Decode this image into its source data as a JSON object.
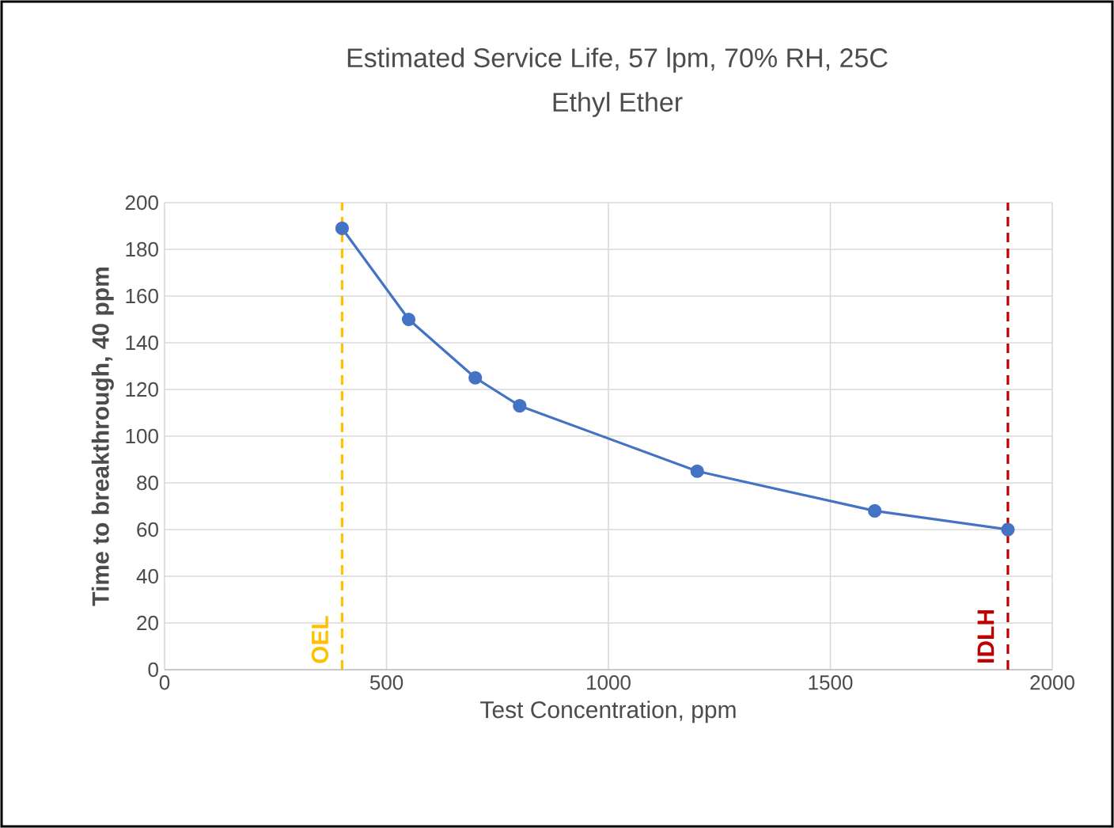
{
  "chart_data": {
    "type": "line",
    "title": "Estimated Service Life, 57 lpm, 70% RH, 25C",
    "subtitle": "Ethyl Ether",
    "xlabel": "Test Concentration, ppm",
    "ylabel": "Time to breakthrough, 40 ppm",
    "x": [
      400,
      550,
      700,
      800,
      1200,
      1600,
      1900
    ],
    "series": [
      {
        "color": "#4472c4",
        "values": [
          189,
          150,
          125,
          113,
          85,
          68,
          60
        ]
      }
    ],
    "xlim": [
      0,
      2000
    ],
    "xticks": [
      0,
      500,
      1000,
      1500,
      2000
    ],
    "ylim": [
      0,
      200
    ],
    "yticks": [
      0,
      20,
      40,
      60,
      80,
      100,
      120,
      140,
      160,
      180,
      200
    ],
    "grid": true,
    "marker": "circle",
    "line_style": "solid",
    "ref_lines": [
      {
        "axis": "x",
        "value": 400,
        "label": "OEL",
        "color": "#ffc000",
        "line_style": "dashed"
      },
      {
        "axis": "x",
        "value": 1900,
        "label": "IDLH",
        "color": "#c00000",
        "line_style": "dashed"
      }
    ]
  }
}
